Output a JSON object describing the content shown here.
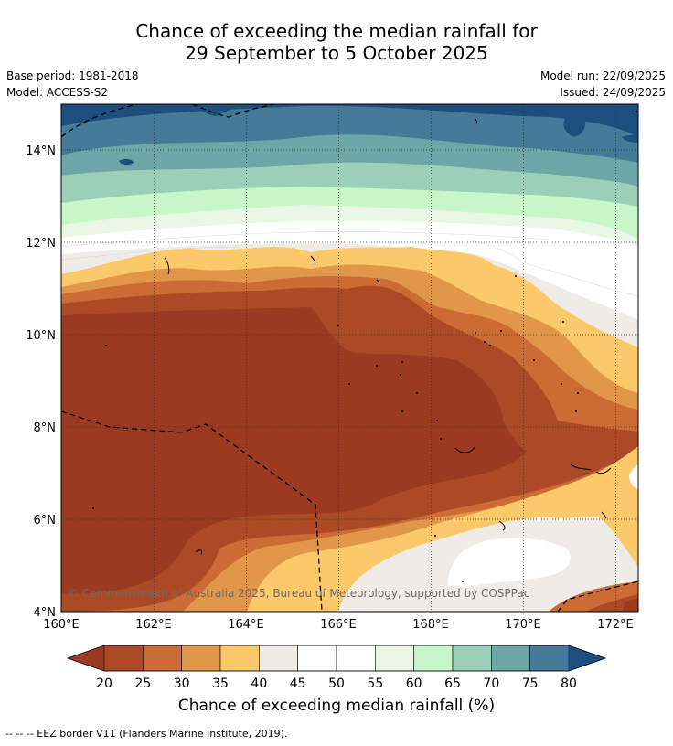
{
  "title": {
    "line1": "Chance of exceeding the median rainfall for",
    "line2": "29 September to 5 October 2025"
  },
  "meta": {
    "base_period": "Base period: 1981-2018",
    "model": "Model: ACCESS-S2",
    "model_run": "Model run: 22/09/2025",
    "issued": "Issued: 24/09/2025"
  },
  "map": {
    "lat_labels": [
      "14°N",
      "12°N",
      "10°N",
      "8°N",
      "6°N",
      "4°N"
    ],
    "lon_labels": [
      "160°E",
      "162°E",
      "164°E",
      "166°E",
      "168°E",
      "170°E",
      "172°E"
    ],
    "copyright": "© Commonwealth of Australia 2025, Bureau of Meteorology, supported by COSPPac",
    "extent": {
      "lon_min": 160,
      "lon_max": 172.5,
      "lat_min": 4,
      "lat_max": 15
    }
  },
  "colorbar": {
    "ticks": [
      "20",
      "25",
      "30",
      "35",
      "40",
      "45",
      "50",
      "55",
      "60",
      "65",
      "70",
      "75",
      "80"
    ],
    "colors": [
      "#9c3a21",
      "#ad4a26",
      "#cc6b34",
      "#e0974a",
      "#fbc96a",
      "#efebe6",
      "#ffffff",
      "#ffffff",
      "#eaf6e6",
      "#c7f7c8",
      "#9bcfb7",
      "#6ea5a6",
      "#457a99",
      "#1c4f7e"
    ],
    "label": "Chance of exceeding median rainfall (%)"
  },
  "legend": {
    "eez_note": "--  --  -- EEZ border V11 (Flanders Marine Institute, 2019)."
  }
}
